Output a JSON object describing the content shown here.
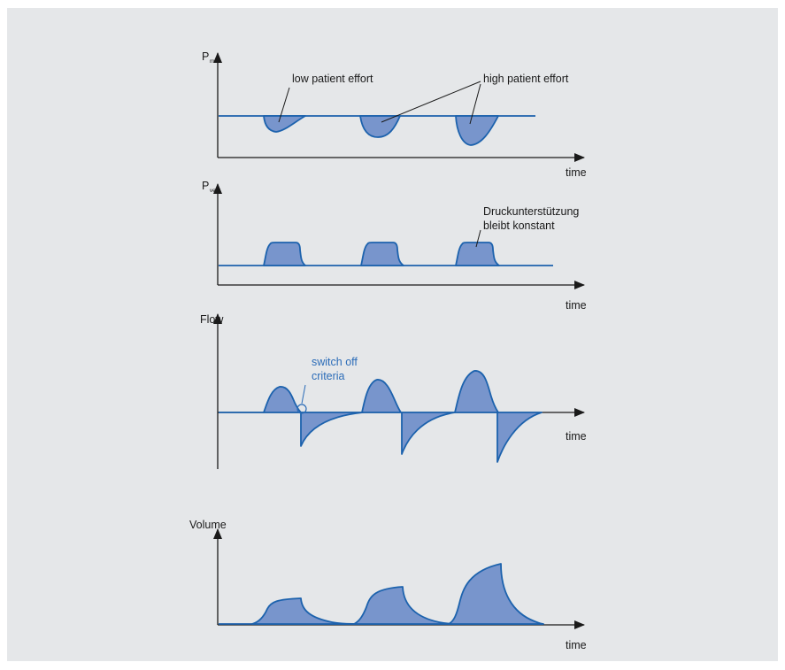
{
  "colors": {
    "background": "#e5e7e9",
    "curve_stroke": "#1c62ad",
    "curve_fill": "#7895cc",
    "axis": "#1a1a1a",
    "annotation_blue": "#2b6cb8"
  },
  "panels": [
    {
      "y_label_main": "P",
      "y_label_sub": "mus",
      "x_label": "time",
      "annotations": [
        "low patient effort",
        "high patient effort"
      ]
    },
    {
      "y_label_main": "P",
      "y_label_sub": "vent",
      "x_label": "time",
      "annotations": [
        "Druckunterstützung",
        "bleibt konstant"
      ]
    },
    {
      "y_label_main": "Flow",
      "x_label": "time",
      "annotations": [
        "switch off",
        "criteria"
      ]
    },
    {
      "y_label_main": "Volume",
      "x_label": "time"
    }
  ]
}
